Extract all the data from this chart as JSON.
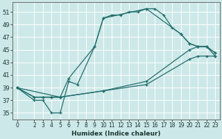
{
  "xlabel": "Humidex (Indice chaleur)",
  "ylabel": "",
  "background_color": "#cde8e8",
  "grid_color": "#ffffff",
  "line_color": "#1e6b6b",
  "xlim": [
    -0.5,
    23.5
  ],
  "ylim": [
    34.0,
    52.5
  ],
  "xticks": [
    0,
    2,
    3,
    4,
    5,
    6,
    7,
    8,
    9,
    10,
    11,
    12,
    13,
    14,
    15,
    16,
    17,
    18,
    19,
    20,
    21,
    22,
    23
  ],
  "yticks": [
    35,
    37,
    39,
    41,
    43,
    45,
    47,
    49,
    51
  ],
  "line1_x": [
    0,
    2,
    3,
    4,
    5,
    6,
    7,
    9,
    10,
    11,
    12,
    13,
    14,
    15,
    16,
    17,
    18,
    19,
    20,
    21,
    22,
    23
  ],
  "line1_y": [
    39,
    37,
    37,
    35,
    35,
    40,
    39.5,
    45.5,
    50,
    50.5,
    50.5,
    51,
    51,
    51.5,
    51.5,
    50.5,
    48.5,
    47.5,
    46,
    45.5,
    45.5,
    44
  ],
  "line2_x": [
    0,
    5,
    6,
    9,
    10,
    15,
    19,
    20,
    21,
    22,
    23
  ],
  "line2_y": [
    39,
    37.5,
    40.5,
    45.5,
    50,
    51.5,
    47.5,
    46,
    45.5,
    45.5,
    44.5
  ],
  "line3_x": [
    0,
    2,
    3,
    4,
    5,
    10,
    15,
    20,
    21,
    22,
    23
  ],
  "line3_y": [
    39,
    37.5,
    37.5,
    37.5,
    37.5,
    38.5,
    39.5,
    43.5,
    44,
    44,
    44
  ],
  "line4_x": [
    0,
    2,
    3,
    4,
    5,
    10,
    15,
    20,
    21,
    22,
    23
  ],
  "line4_y": [
    39,
    37.5,
    37.5,
    37.5,
    37.5,
    38.5,
    40,
    45,
    45.5,
    45.5,
    44.5
  ]
}
